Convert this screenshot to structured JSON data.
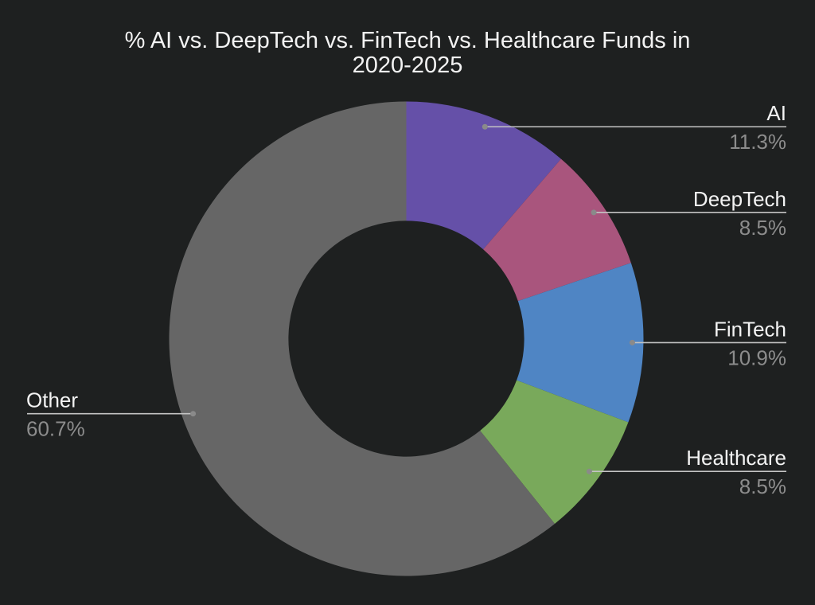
{
  "chart_data": {
    "type": "pie",
    "subtype": "donut",
    "title": "% AI vs. DeepTech vs. FinTech vs. Healthcare Funds in 2020-2025",
    "title_lines": [
      "% AI vs. DeepTech vs. FinTech vs. Healthcare Funds in",
      "2020-2025"
    ],
    "categories": [
      "AI",
      "DeepTech",
      "FinTech",
      "Healthcare",
      "Other"
    ],
    "values": [
      11.3,
      8.5,
      10.9,
      8.5,
      60.7
    ],
    "value_labels": [
      "11.3%",
      "8.5%",
      "10.9%",
      "8.5%",
      "60.7%"
    ],
    "colors": [
      "#6550a8",
      "#a9557d",
      "#4f85c4",
      "#79a95b",
      "#666666"
    ],
    "hole": 0.497,
    "rotation_deg": 0,
    "direction": "clockwise",
    "legend": "none",
    "label_style": "outside-with-leader-lines",
    "background_color": "#1e2020",
    "title_color": "#f3f3f3",
    "label_color": "#f3f3f3",
    "percent_color": "#8c8c8c",
    "leader_line_color": "#c4c4c4",
    "leader_dot_color": "#8a8a8a"
  }
}
